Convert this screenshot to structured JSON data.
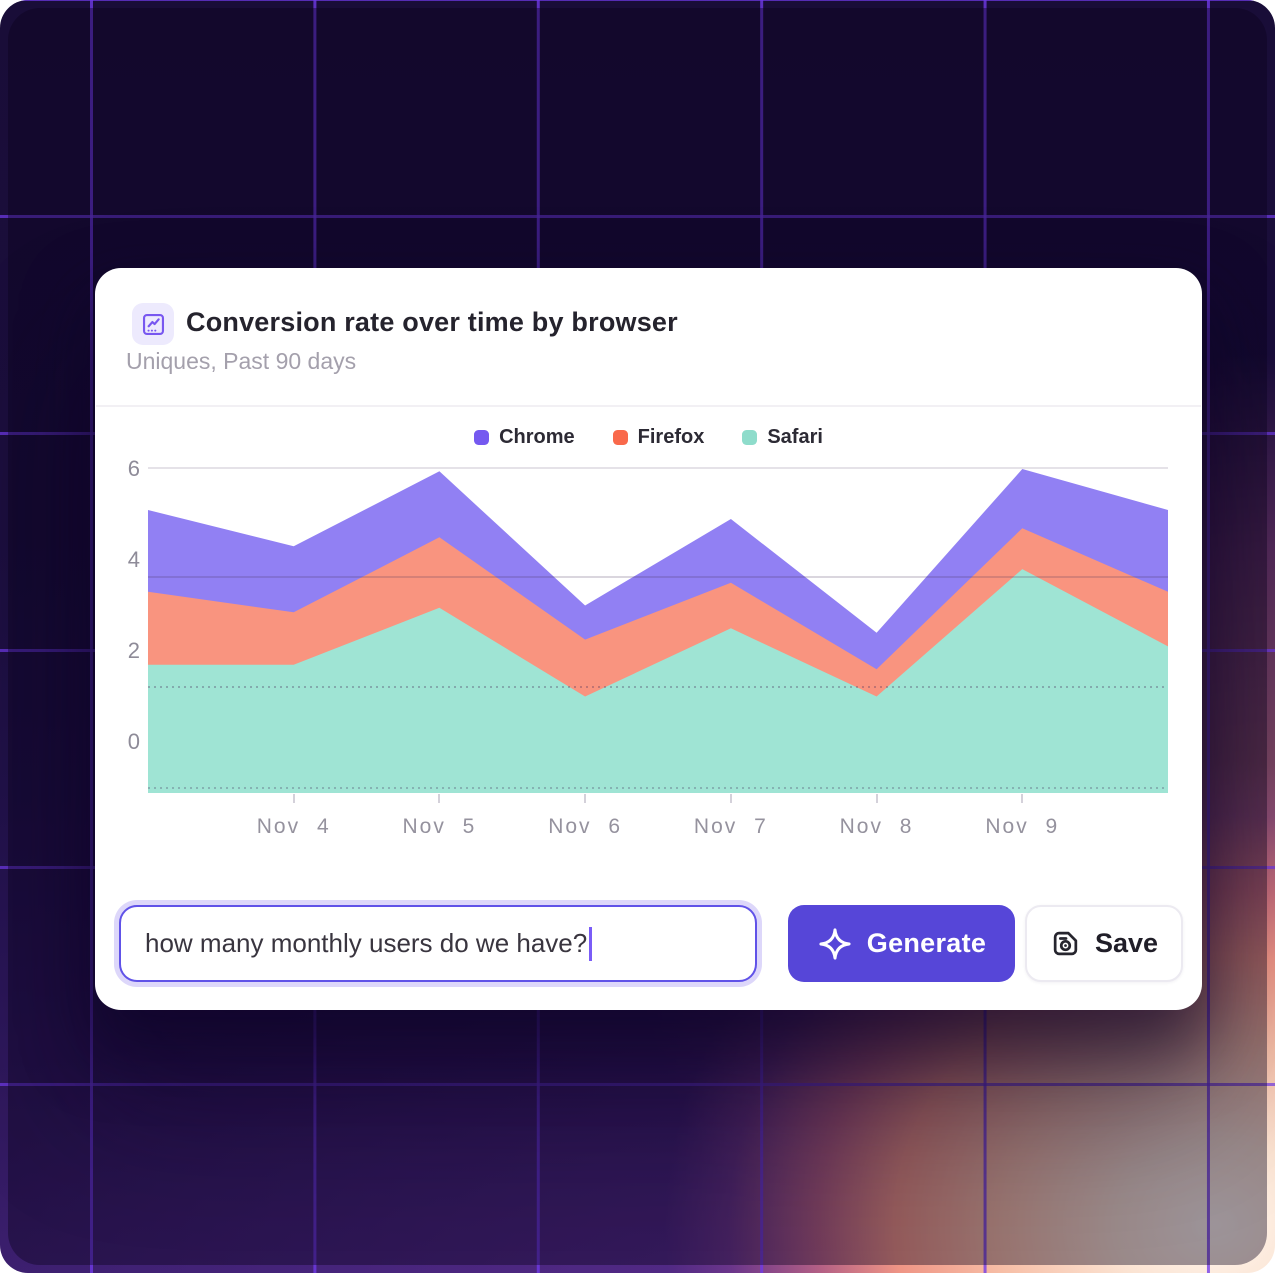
{
  "chart_data": {
    "type": "area",
    "stacked": true,
    "title": "Conversion rate over time by browser",
    "subtitle": "Uniques, Past 90 days",
    "legend_position": "top-center",
    "grid": "horizontal",
    "y_tick_labels": [
      "6",
      "4",
      "2",
      "0"
    ],
    "y_tick_values": [
      6,
      4,
      2,
      0
    ],
    "ylim": [
      -1.12,
      6.3
    ],
    "x_tick_labels": [
      "Nov 4",
      "Nov 5",
      "Nov 6",
      "Nov 7",
      "Nov 8",
      "Nov 9"
    ],
    "x_tick_point_indices": [
      1,
      2,
      3,
      4,
      5,
      6
    ],
    "points_per_series": 8,
    "series": [
      {
        "name": "Chrome",
        "swatch": "#7559f0",
        "fill": "#9180f3",
        "values": [
          1.8,
          1.45,
          1.45,
          0.75,
          1.4,
          0.8,
          1.3,
          1.8
        ]
      },
      {
        "name": "Firefox",
        "swatch": "#f9694b",
        "fill": "#f9947f",
        "values": [
          1.6,
          1.15,
          1.55,
          1.25,
          1.0,
          0.6,
          0.9,
          1.2
        ]
      },
      {
        "name": "Safari",
        "swatch": "#8edccb",
        "fill": "#9fe4d4",
        "values": [
          1.7,
          1.7,
          2.95,
          1.0,
          2.5,
          1.0,
          3.8,
          2.1
        ]
      }
    ]
  },
  "header": {
    "icon": "chart-line-icon"
  },
  "prompt": {
    "value": "how many monthly users do we have?"
  },
  "buttons": {
    "generate": "Generate",
    "save": "Save"
  },
  "colors": {
    "accent": "#5646d8",
    "input_border": "#6052e8",
    "focus_ring": "#ddd7fa",
    "grid_line": "#703ae9",
    "card_bg": "#ffffff",
    "title_text": "#25232d",
    "muted_text": "#a4a0ac",
    "axis_text": "#8e8b98"
  }
}
